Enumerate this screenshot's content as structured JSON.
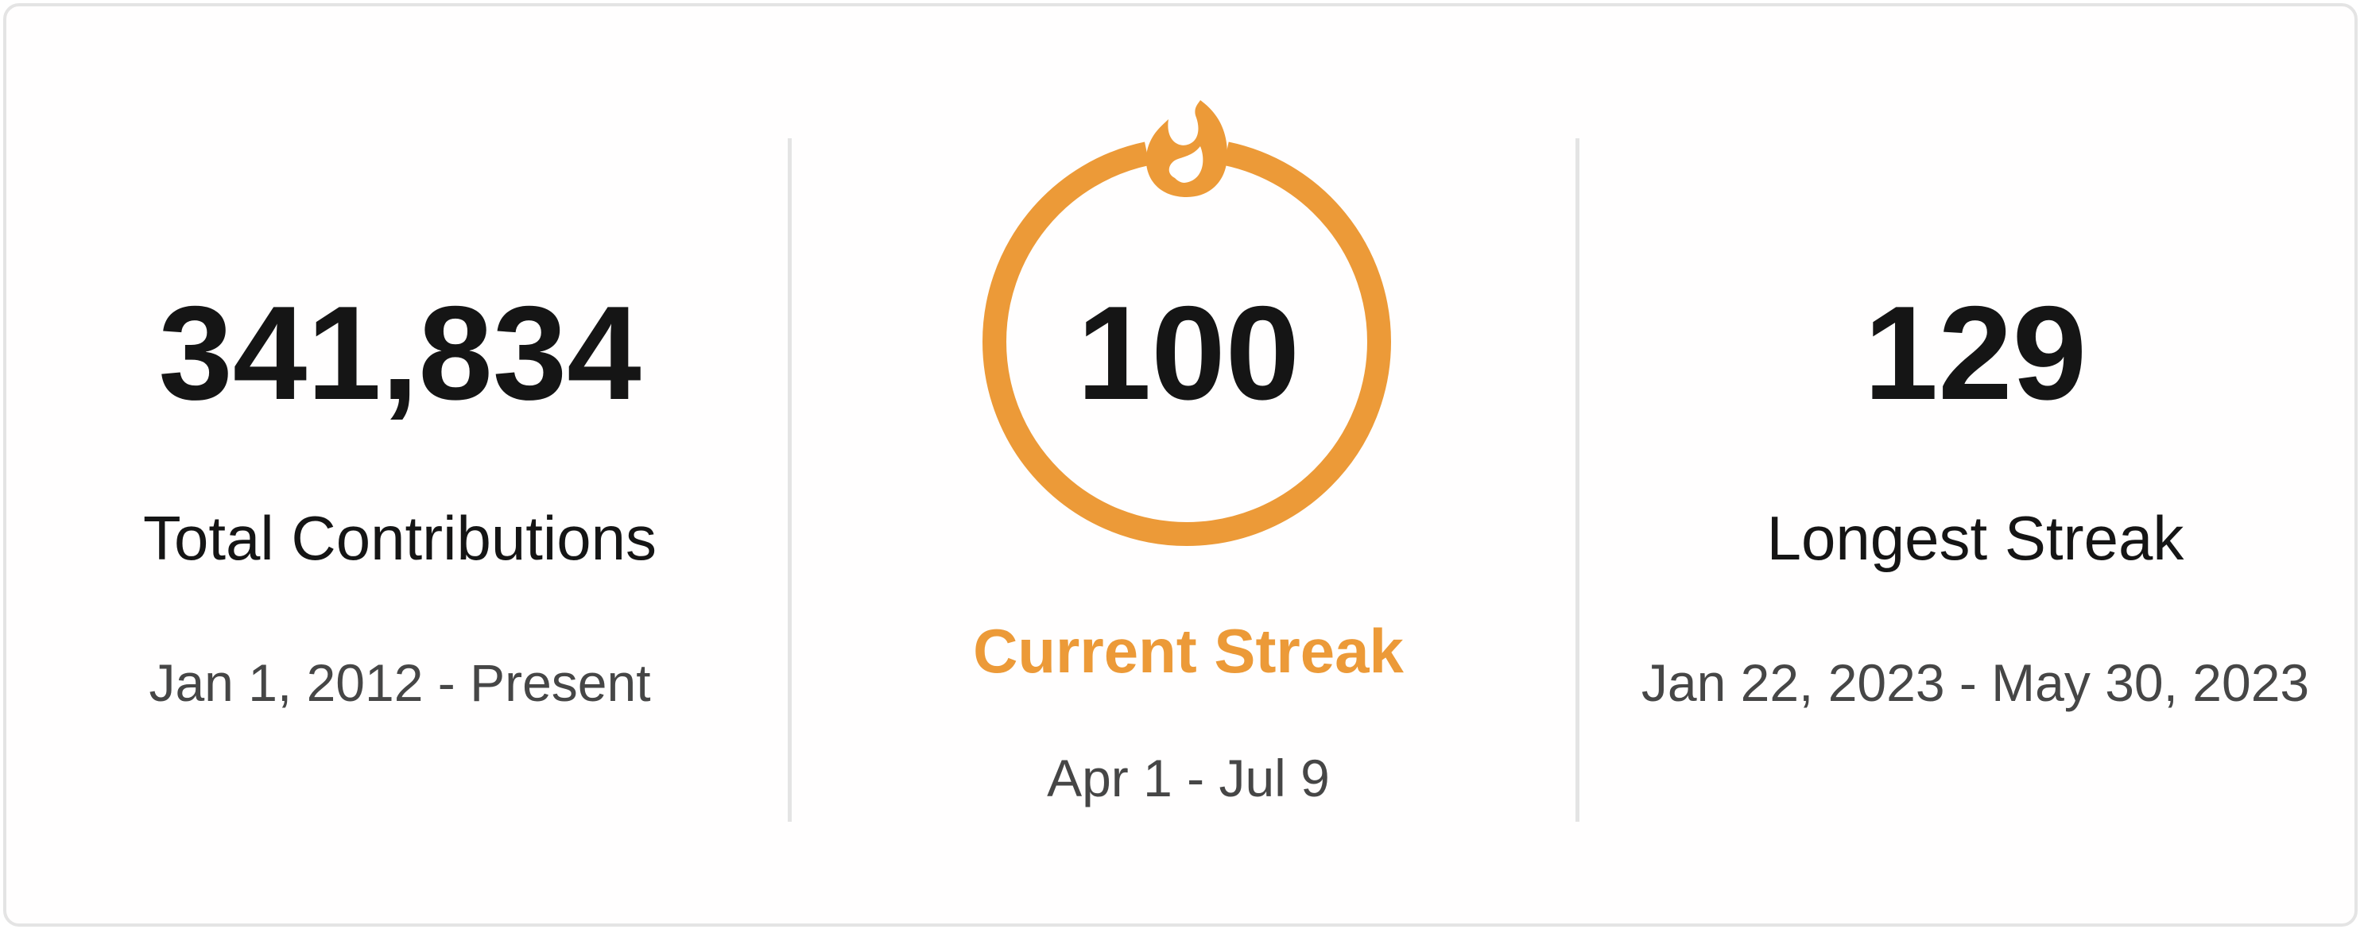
{
  "total": {
    "value": "341,834",
    "label": "Total Contributions",
    "range": "Jan 1, 2012 - Present"
  },
  "current_streak": {
    "value": "100",
    "label": "Current Streak",
    "range": "Apr 1 - Jul 9"
  },
  "longest_streak": {
    "value": "129",
    "label": "Longest Streak",
    "range": "Jan 22, 2023 - May 30, 2023"
  },
  "colors": {
    "accent": "#ec9a38",
    "text": "#151515",
    "subtext": "#464646",
    "border": "#e4e4e4"
  },
  "icons": [
    "fire-icon",
    "ring"
  ]
}
